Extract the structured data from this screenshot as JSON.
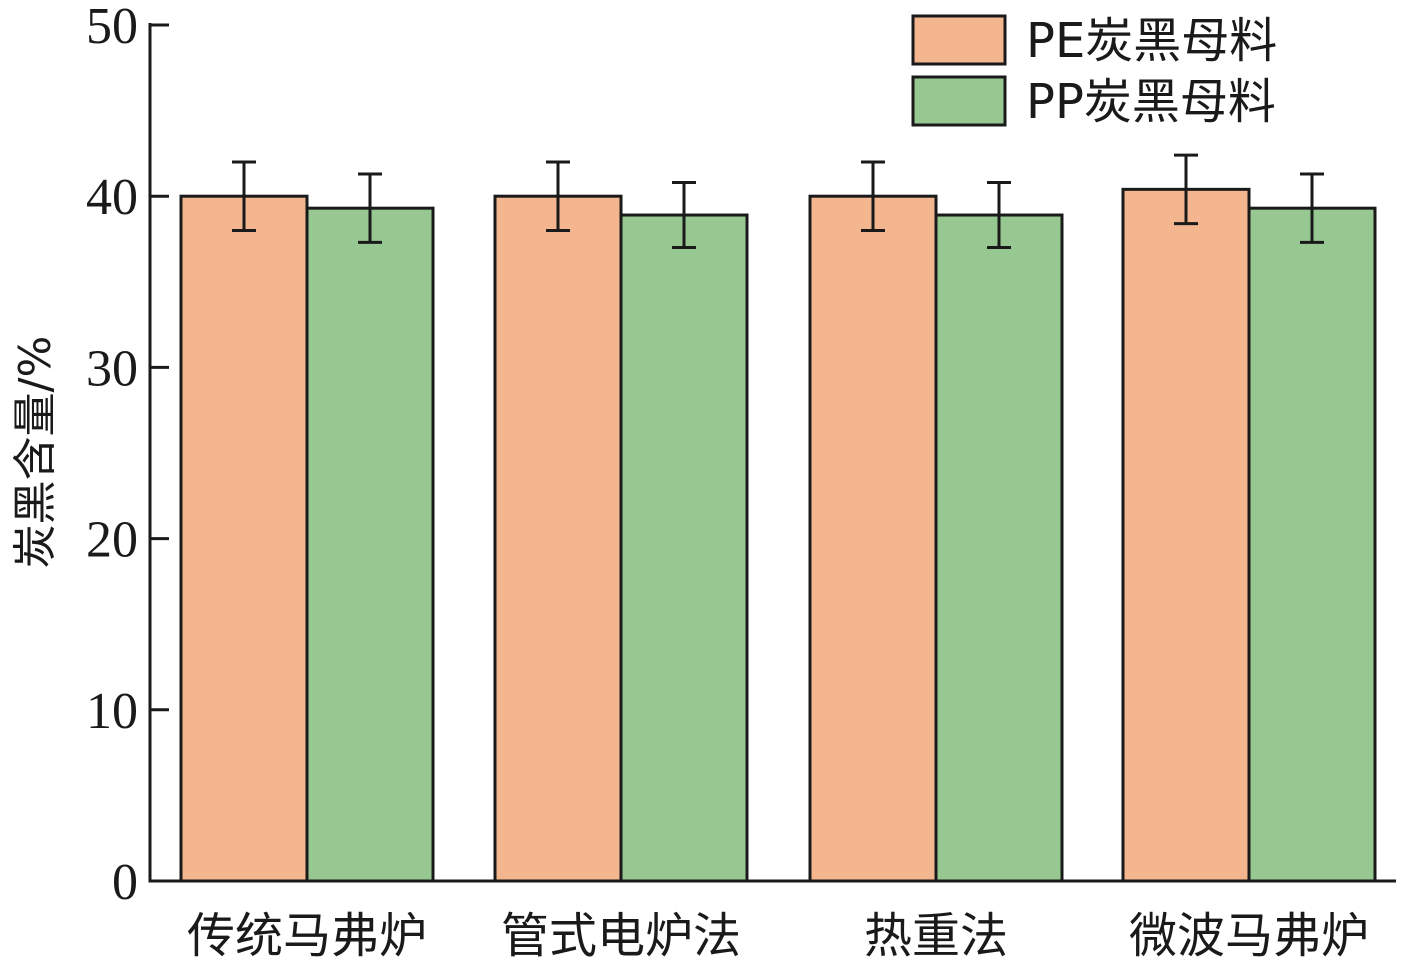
{
  "chart_data": {
    "type": "bar",
    "categories": [
      "传统马弗炉",
      "管式电炉法",
      "热重法",
      "微波马弗炉"
    ],
    "series": [
      {
        "name": "PE炭黑母料",
        "color": "#F4B68F",
        "values": [
          40.0,
          40.0,
          40.0,
          40.4
        ],
        "errors": [
          2.0,
          2.0,
          2.0,
          2.0
        ]
      },
      {
        "name": "PP炭黑母料",
        "color": "#98C891",
        "values": [
          39.3,
          38.9,
          38.9,
          39.3
        ],
        "errors": [
          2.0,
          1.9,
          1.9,
          2.0
        ]
      }
    ],
    "ylabel": "炭黑含量/%",
    "xlabel": "",
    "ylim": [
      0,
      50
    ],
    "yticks": [
      0,
      10,
      20,
      30,
      40,
      50
    ],
    "legend_position": "top-right",
    "grid": false
  }
}
